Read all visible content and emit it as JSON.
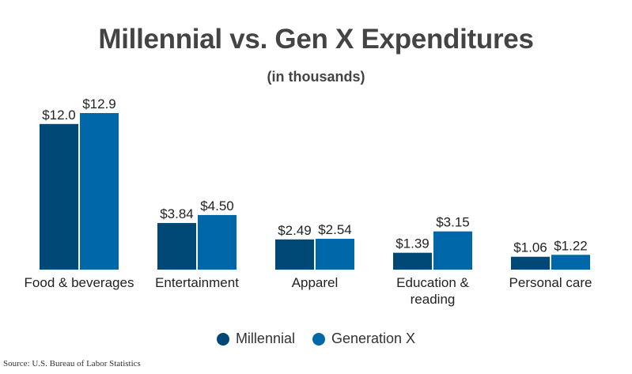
{
  "chart_data": {
    "type": "bar",
    "title": "Millennial vs. Gen X Expenditures",
    "subtitle": "(in thousands)",
    "categories": [
      "Food & beverages",
      "Entertainment",
      "Apparel",
      "Education & reading",
      "Personal care"
    ],
    "series": [
      {
        "name": "Millennial",
        "color": "#004876",
        "values": [
          12.0,
          3.84,
          2.49,
          1.39,
          1.06
        ],
        "labels": [
          "$12.0",
          "$3.84",
          "$2.49",
          "$1.39",
          "$1.06"
        ]
      },
      {
        "name": "Generation X",
        "color": "#0067a8",
        "values": [
          12.9,
          4.5,
          2.54,
          3.15,
          1.22
        ],
        "labels": [
          "$12.9",
          "$4.50",
          "$2.54",
          "$3.15",
          "$1.22"
        ]
      }
    ],
    "ylim": [
      0,
      12.9
    ],
    "grid": false,
    "legend_position": "bottom"
  },
  "source": "Source: U.S. Bureau of Labor Statistics"
}
